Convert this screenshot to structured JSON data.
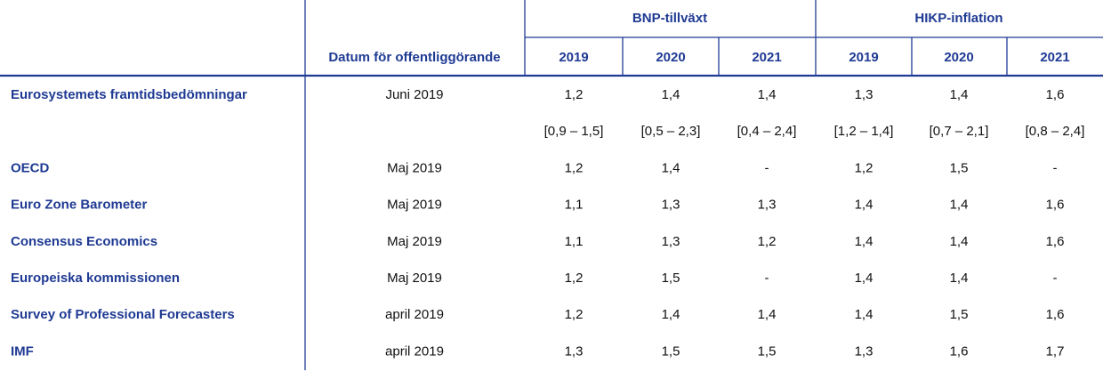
{
  "header": {
    "groups": [
      "BNP-tillväxt",
      "HIKP-inflation"
    ],
    "date_label": "Datum för offentliggörande",
    "years": [
      "2019",
      "2020",
      "2021",
      "2019",
      "2020",
      "2021"
    ]
  },
  "rows": [
    {
      "name": "Eurosystemets framtidsbedömningar",
      "date": "Juni 2019",
      "values": [
        "1,2",
        "1,4",
        "1,4",
        "1,3",
        "1,4",
        "1,6"
      ],
      "ranges": [
        "[0,9 – 1,5]",
        "[0,5 – 2,3]",
        "[0,4 – 2,4]",
        "[1,2 – 1,4]",
        "[0,7 – 2,1]",
        "[0,8 – 2,4]"
      ]
    },
    {
      "name": "OECD",
      "date": "Maj 2019",
      "values": [
        "1,2",
        "1,4",
        "-",
        "1,2",
        "1,5",
        "-"
      ]
    },
    {
      "name": "Euro Zone Barometer",
      "date": "Maj 2019",
      "values": [
        "1,1",
        "1,3",
        "1,3",
        "1,4",
        "1,4",
        "1,6"
      ]
    },
    {
      "name": "Consensus Economics",
      "date": "Maj 2019",
      "values": [
        "1,1",
        "1,3",
        "1,2",
        "1,4",
        "1,4",
        "1,6"
      ]
    },
    {
      "name": "Europeiska kommissionen",
      "date": "Maj 2019",
      "values": [
        "1,2",
        "1,5",
        "-",
        "1,4",
        "1,4",
        "-"
      ]
    },
    {
      "name": "Survey of Professional Forecasters",
      "date": "april 2019",
      "values": [
        "1,2",
        "1,4",
        "1,4",
        "1,4",
        "1,5",
        "1,6"
      ]
    },
    {
      "name": "IMF",
      "date": "april 2019",
      "values": [
        "1,3",
        "1,5",
        "1,5",
        "1,3",
        "1,6",
        "1,7"
      ]
    }
  ]
}
